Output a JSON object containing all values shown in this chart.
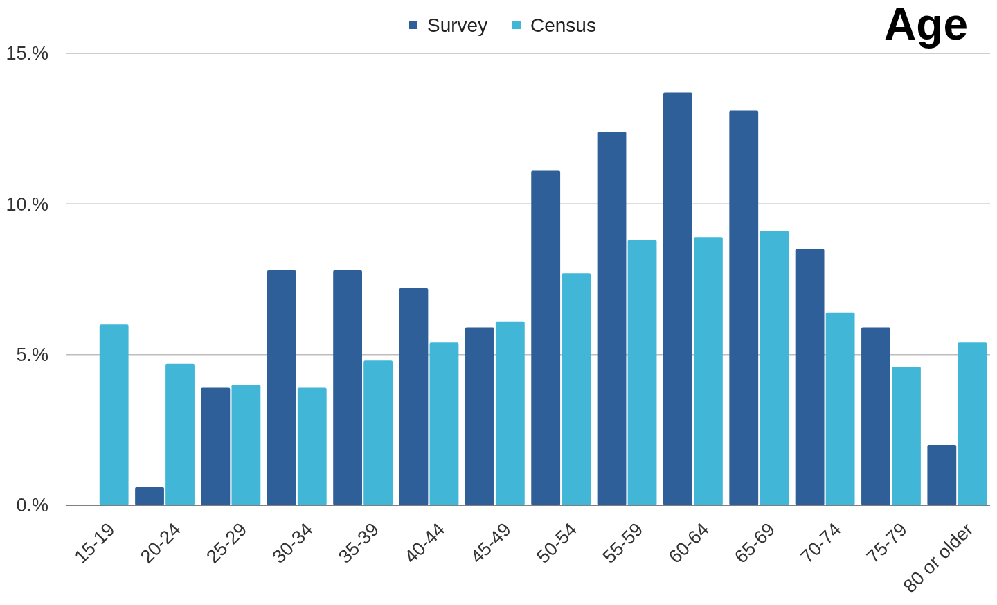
{
  "chart_data": {
    "type": "bar",
    "title": "Age",
    "categories": [
      "15-19",
      "20-24",
      "25-29",
      "30-34",
      "35-39",
      "40-44",
      "45-49",
      "50-54",
      "55-59",
      "60-64",
      "65-69",
      "70-74",
      "75-79",
      "80 or older"
    ],
    "series": [
      {
        "name": "Survey",
        "color": "#2e5f98",
        "values": [
          null,
          0.6,
          3.9,
          7.8,
          7.8,
          7.2,
          5.9,
          11.1,
          12.4,
          13.7,
          13.1,
          8.5,
          5.9,
          2.0
        ]
      },
      {
        "name": "Census",
        "color": "#41b6d6",
        "values": [
          6.0,
          4.7,
          4.0,
          3.9,
          4.8,
          5.4,
          6.1,
          7.7,
          8.8,
          8.9,
          9.1,
          6.4,
          4.6,
          5.4
        ]
      }
    ],
    "ylim": [
      0,
      15
    ],
    "yticks": [
      {
        "value": 0,
        "label": "0.%"
      },
      {
        "value": 5,
        "label": "5.%"
      },
      {
        "value": 10,
        "label": "10.%"
      },
      {
        "value": 15,
        "label": "15.%"
      }
    ],
    "grid": "y",
    "legend": "top"
  }
}
